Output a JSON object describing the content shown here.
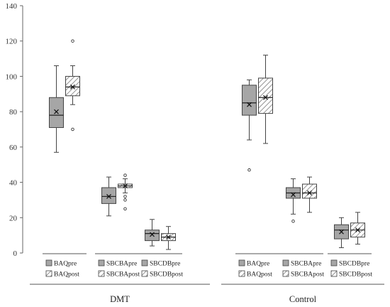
{
  "chart_data": {
    "type": "boxplot",
    "y_ticks": [
      0,
      20,
      40,
      60,
      80,
      100,
      120,
      140
    ],
    "ylim": [
      0,
      140
    ],
    "grid": false,
    "colors": {
      "pre": "#a6a6a6",
      "post_fill": "#ffffff",
      "hatch": "#777777",
      "line": "#444444"
    },
    "groups": [
      {
        "label": "DMT",
        "pairs": [
          {
            "pre": {
              "name": "BAQpre",
              "min": 57,
              "q1": 71,
              "median": 78,
              "q3": 88,
              "max": 106,
              "mean": 80,
              "outliers": []
            },
            "post": {
              "name": "BAQpost",
              "min": 84,
              "q1": 89,
              "median": 94,
              "q3": 100,
              "max": 106,
              "mean": 94,
              "outliers": [
                120,
                70
              ]
            }
          },
          {
            "pre": {
              "name": "SBCBApre",
              "min": 21,
              "q1": 28,
              "median": 32,
              "q3": 37,
              "max": 43,
              "mean": 32,
              "outliers": []
            },
            "post": {
              "name": "SBCBApost",
              "min": 34,
              "q1": 37,
              "median": 38,
              "q3": 39,
              "max": 42,
              "mean": 38,
              "outliers": [
                44,
                32,
                30,
                25
              ]
            }
          },
          {
            "pre": {
              "name": "SBCDBpre",
              "min": 4,
              "q1": 7,
              "median": 11,
              "q3": 13,
              "max": 19,
              "mean": 10.5,
              "outliers": []
            },
            "post": {
              "name": "SBCDBpost",
              "min": 2,
              "q1": 7,
              "median": 9,
              "q3": 11,
              "max": 15,
              "mean": 9,
              "outliers": []
            }
          }
        ]
      },
      {
        "label": "Control",
        "pairs": [
          {
            "pre": {
              "name": "BAQpre",
              "min": 64,
              "q1": 78,
              "median": 85,
              "q3": 95,
              "max": 98,
              "mean": 84,
              "outliers": [
                47
              ]
            },
            "post": {
              "name": "BAQpost",
              "min": 62,
              "q1": 79,
              "median": 88,
              "q3": 99,
              "max": 112,
              "mean": 88,
              "outliers": []
            }
          },
          {
            "pre": {
              "name": "SBCBApre",
              "min": 22,
              "q1": 31,
              "median": 34,
              "q3": 37,
              "max": 42,
              "mean": 33,
              "outliers": [
                18
              ]
            },
            "post": {
              "name": "SBCBApost",
              "min": 23,
              "q1": 31,
              "median": 34,
              "q3": 39,
              "max": 43,
              "mean": 34,
              "outliers": []
            }
          },
          {
            "pre": {
              "name": "SBCDBpre",
              "min": 3,
              "q1": 8,
              "median": 13,
              "q3": 16,
              "max": 20,
              "mean": 12,
              "outliers": []
            },
            "post": {
              "name": "SBCDBpost",
              "min": 5,
              "q1": 9,
              "median": 13,
              "q3": 17,
              "max": 23,
              "mean": 13,
              "outliers": []
            }
          }
        ]
      }
    ]
  }
}
